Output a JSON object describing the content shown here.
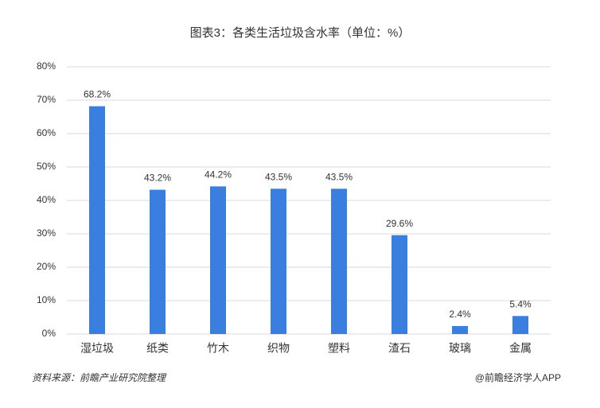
{
  "chart_data": {
    "type": "bar",
    "title": "图表3：各类生活垃圾含水率（单位：%）",
    "categories": [
      "湿垃圾",
      "纸类",
      "竹木",
      "织物",
      "塑料",
      "渣石",
      "玻璃",
      "金属"
    ],
    "values": [
      68.2,
      43.2,
      44.2,
      43.5,
      43.5,
      29.6,
      2.4,
      5.4
    ],
    "value_labels": [
      "68.2%",
      "43.2%",
      "44.2%",
      "43.5%",
      "43.5%",
      "29.6%",
      "2.4%",
      "5.4%"
    ],
    "color": "#3a7fe0",
    "ylim": [
      0,
      80
    ],
    "yticks": [
      {
        "value": 0,
        "label": "0%"
      },
      {
        "value": 10,
        "label": "10%"
      },
      {
        "value": 20,
        "label": "20%"
      },
      {
        "value": 30,
        "label": "30%"
      },
      {
        "value": 40,
        "label": "40%"
      },
      {
        "value": 50,
        "label": "50%"
      },
      {
        "value": 60,
        "label": "60%"
      },
      {
        "value": 70,
        "label": "70%"
      },
      {
        "value": 80,
        "label": "80%"
      }
    ],
    "grid": true,
    "source": "资料来源：前瞻产业研究院整理",
    "brand": "@前瞻经济学人APP"
  }
}
